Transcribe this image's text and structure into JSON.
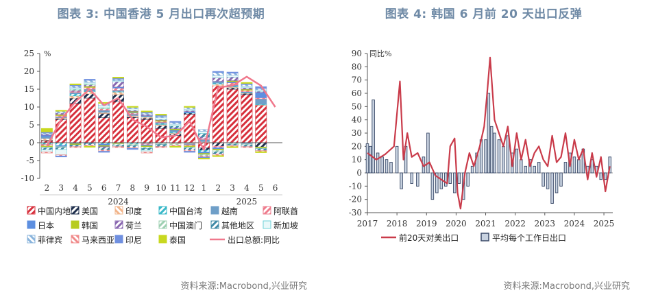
{
  "left": {
    "title": "图表 3:  中国香港 5 月出口再次超预期",
    "source": "资料来源:Macrobond,兴业研究",
    "chart_data": {
      "type": "bar",
      "stacked": true,
      "unit_label": "%",
      "categories": [
        "2",
        "3",
        "4",
        "5",
        "6",
        "7",
        "8",
        "9",
        "10",
        "11",
        "12",
        "1",
        "2",
        "3",
        "4",
        "5",
        "6"
      ],
      "year_labels": [
        {
          "label": "2024",
          "index": 5
        },
        {
          "label": "2025",
          "index": 14
        }
      ],
      "ylim": [
        -10,
        25
      ],
      "yticks": [
        -10,
        -5,
        0,
        5,
        10,
        15,
        20,
        25
      ],
      "series": [
        {
          "name": "中国内地",
          "color": "#d7303c",
          "pattern": "hatch-red",
          "values": [
            0.5,
            6.5,
            11,
            12.5,
            7,
            11.5,
            7,
            6.5,
            4,
            2,
            8,
            -1.5,
            16,
            15,
            13.5,
            10.5,
            0
          ]
        },
        {
          "name": "美国",
          "color": "#1f2f4d",
          "pattern": "hatch-navy",
          "values": [
            0.2,
            0.3,
            1.5,
            1.2,
            1.2,
            2,
            0.3,
            0.4,
            0.8,
            0.5,
            0.3,
            -0.6,
            -1,
            0.4,
            0.3,
            -1.2,
            0
          ]
        },
        {
          "name": "印度",
          "color": "#f2b48a",
          "pattern": "dash-orange",
          "values": [
            0.5,
            0.2,
            0.6,
            0.6,
            0.3,
            0.7,
            0.3,
            0.3,
            0.3,
            0.2,
            -0.3,
            0.3,
            0.4,
            0.2,
            0.1,
            0.1,
            0
          ]
        },
        {
          "name": "中国台湾",
          "color": "#39b8c8",
          "pattern": "hatch-teal",
          "values": [
            -0.5,
            -0.8,
            0.6,
            0.2,
            -0.4,
            0.2,
            -0.4,
            -0.3,
            0.3,
            0.3,
            0.1,
            -0.5,
            0.3,
            0.2,
            0.1,
            0.2,
            0
          ]
        },
        {
          "name": "越南",
          "color": "#6f9fc8",
          "pattern": "solid-blue",
          "values": [
            0.5,
            0.3,
            0.4,
            0.5,
            0.6,
            0.3,
            0.4,
            0.4,
            0.3,
            0.4,
            -0.3,
            0.6,
            0.5,
            0.4,
            0.3,
            1.5,
            0
          ]
        },
        {
          "name": "阿联酋",
          "color": "#ee7b8c",
          "pattern": "hatch-pink",
          "values": [
            -0.4,
            0.3,
            0.3,
            0.5,
            0.4,
            0.6,
            0.3,
            -0.3,
            0.3,
            -0.3,
            -0.3,
            0.4,
            -0.4,
            0.6,
            0.4,
            0.3,
            0
          ]
        },
        {
          "name": "日本",
          "color": "#5d8fe0",
          "pattern": "solid-blue2",
          "values": [
            0.4,
            -0.3,
            -0.3,
            -0.2,
            -0.4,
            0.3,
            0.2,
            -0.3,
            -0.2,
            0.2,
            0.3,
            -0.4,
            -0.4,
            0.3,
            -0.3,
            1.5,
            0
          ]
        },
        {
          "name": "韩国",
          "color": "#b8cc1f",
          "pattern": "solid-lime",
          "values": [
            -0.3,
            0.3,
            -0.3,
            0.3,
            -0.3,
            -0.3,
            0.3,
            -0.3,
            0.3,
            0.3,
            -0.3,
            -0.3,
            -0.3,
            0.3,
            0.3,
            -0.3,
            0
          ]
        },
        {
          "name": "荷兰",
          "color": "#8a68b0",
          "pattern": "hatch-purple",
          "values": [
            0.3,
            0.4,
            0.3,
            0.4,
            -0.4,
            1.5,
            0.3,
            0.3,
            0.2,
            0.3,
            0.3,
            0.3,
            1,
            1,
            0.4,
            0.3,
            0
          ]
        },
        {
          "name": "中国澳门",
          "color": "#9ed0b2",
          "pattern": "hatch-green",
          "values": [
            -0.3,
            -0.3,
            0.3,
            0.3,
            0.3,
            -0.4,
            -0.4,
            -0.4,
            -0.3,
            -0.4,
            -0.3,
            -0.4,
            -0.5,
            -0.4,
            -0.3,
            -0.2,
            0
          ]
        },
        {
          "name": "其他地区",
          "color": "#3f8aa6",
          "pattern": "hatch-steel",
          "values": [
            -0.5,
            -0.5,
            -0.5,
            -0.5,
            -0.6,
            -0.4,
            -0.5,
            -0.5,
            -0.6,
            0.5,
            -0.6,
            1,
            -0.6,
            -0.4,
            -0.5,
            -0.5,
            0
          ]
        },
        {
          "name": "新加坡",
          "color": "#6ed2d8",
          "pattern": "outline-cyan",
          "values": [
            -0.6,
            -1.5,
            0.4,
            0.4,
            0.6,
            0.3,
            0.4,
            -0.5,
            0.5,
            0.5,
            0.4,
            0.6,
            0.6,
            0.5,
            0.4,
            0.4,
            0
          ]
        },
        {
          "name": "菲律宾",
          "color": "#8ab4dc",
          "pattern": "stripe-lightblue",
          "values": [
            0.3,
            0.5,
            0.5,
            0.6,
            0.6,
            0.4,
            0.4,
            0.4,
            0.4,
            0.5,
            0.5,
            0.5,
            0.9,
            0.6,
            0.5,
            0.4,
            0
          ]
        },
        {
          "name": "马来西亚",
          "color": "#f08a8a",
          "pattern": "stripe-salmon",
          "values": [
            -0.3,
            -0.3,
            -0.3,
            -0.3,
            -0.3,
            -0.3,
            -0.3,
            -0.3,
            -0.3,
            -0.3,
            -0.3,
            -0.3,
            -0.4,
            -0.3,
            -0.3,
            -0.3,
            0
          ]
        },
        {
          "name": "印尼",
          "color": "#7090e0",
          "pattern": "solid-indigo",
          "values": [
            0.3,
            -0.3,
            0.3,
            0.3,
            -0.3,
            0.3,
            -0.3,
            0.3,
            0.3,
            0.3,
            -0.3,
            -0.3,
            0.3,
            0.3,
            0.3,
            0.5,
            0
          ]
        },
        {
          "name": "泰国",
          "color": "#c8d820",
          "pattern": "solid-yellow",
          "values": [
            1,
            0.3,
            0.3,
            -0.3,
            0.3,
            0.3,
            0.3,
            0.3,
            0.3,
            -0.3,
            0.3,
            -0.3,
            -0.3,
            -0.3,
            0.3,
            -0.3,
            0
          ]
        }
      ],
      "line": {
        "name": "出口总额:同比",
        "color": "#f0788c",
        "values": [
          -1,
          6.5,
          11.5,
          15,
          10.5,
          12.5,
          6.5,
          4.5,
          1.5,
          2,
          6,
          -2,
          15.5,
          16,
          18.5,
          16,
          10
        ]
      },
      "legend": [
        [
          "中国内地",
          "美国",
          "印度",
          "中国台湾",
          "越南",
          "阿联酋"
        ],
        [
          "日本",
          "韩国",
          "荷兰",
          "中国澳门",
          "其他地区",
          "新加坡"
        ],
        [
          "菲律宾",
          "马来西亚",
          "印尼",
          "泰国",
          "出口总额:同比"
        ]
      ]
    }
  },
  "right": {
    "title": "图表 4:  韩国 6 月前 20 天出口反弹",
    "source": "资料来源:Macrobond,兴业研究",
    "chart_data": {
      "type": "line+bar",
      "unit_label": "同比%",
      "xlim": [
        2017.0,
        2025.3
      ],
      "ylim": [
        -30,
        90
      ],
      "yticks": [
        -30,
        -20,
        -10,
        0,
        10,
        20,
        30,
        40,
        50,
        60,
        70,
        80,
        90
      ],
      "xticks": [
        "2017",
        "2018",
        "2019",
        "2020",
        "2021",
        "2022",
        "2023",
        "2024",
        "2025"
      ],
      "line": {
        "name": "前20天对美出口",
        "color": "#c93b4a",
        "x": [
          2017.0,
          2017.3,
          2017.6,
          2017.9,
          2018.1,
          2018.22,
          2018.35,
          2018.5,
          2018.7,
          2018.9,
          2019.1,
          2019.3,
          2019.5,
          2019.7,
          2019.8,
          2019.95,
          2020.05,
          2020.15,
          2020.3,
          2020.45,
          2020.6,
          2020.8,
          2020.95,
          2021.05,
          2021.15,
          2021.3,
          2021.45,
          2021.6,
          2021.75,
          2021.9,
          2022.05,
          2022.2,
          2022.35,
          2022.5,
          2022.65,
          2022.8,
          2022.95,
          2023.1,
          2023.25,
          2023.4,
          2023.55,
          2023.7,
          2023.85,
          2024.0,
          2024.15,
          2024.3,
          2024.45,
          2024.6,
          2024.75,
          2024.9,
          2025.05,
          2025.2
        ],
        "y": [
          15,
          10,
          14,
          20,
          69,
          10,
          30,
          12,
          15,
          5,
          8,
          -2,
          -5,
          -8,
          20,
          26,
          -15,
          -27,
          0,
          15,
          5,
          20,
          35,
          60,
          87,
          40,
          30,
          20,
          35,
          5,
          30,
          10,
          25,
          5,
          15,
          20,
          10,
          5,
          28,
          8,
          12,
          30,
          5,
          25,
          10,
          18,
          -5,
          15,
          -3,
          12,
          -14,
          5
        ]
      },
      "bars": {
        "name": "平均每个工作日出口",
        "color": "#3a4a68",
        "x": [
          2017.0,
          2017.1,
          2017.2,
          2017.35,
          2017.5,
          2017.65,
          2017.8,
          2018.0,
          2018.15,
          2018.3,
          2018.5,
          2018.7,
          2018.9,
          2019.05,
          2019.2,
          2019.35,
          2019.5,
          2019.65,
          2019.8,
          2019.95,
          2020.1,
          2020.25,
          2020.4,
          2020.55,
          2020.7,
          2020.85,
          2021.0,
          2021.1,
          2021.2,
          2021.3,
          2021.45,
          2021.6,
          2021.75,
          2021.9,
          2022.05,
          2022.2,
          2022.35,
          2022.5,
          2022.65,
          2022.8,
          2022.95,
          2023.1,
          2023.25,
          2023.4,
          2023.55,
          2023.7,
          2023.85,
          2024.0,
          2024.15,
          2024.3,
          2024.45,
          2024.6,
          2024.75,
          2024.9,
          2025.05,
          2025.2
        ],
        "y": [
          22,
          20,
          55,
          15,
          12,
          10,
          8,
          20,
          -12,
          20,
          -8,
          -10,
          12,
          30,
          -20,
          -15,
          -12,
          -10,
          -8,
          -15,
          -8,
          -20,
          -10,
          5,
          15,
          25,
          25,
          60,
          35,
          30,
          25,
          20,
          28,
          15,
          18,
          10,
          5,
          10,
          5,
          8,
          -10,
          -12,
          -23,
          -15,
          -10,
          8,
          15,
          12,
          10,
          18,
          5,
          10,
          5,
          -5,
          -5,
          12
        ]
      },
      "legend": [
        "前20天对美出口",
        "平均每个工作日出口"
      ]
    }
  }
}
